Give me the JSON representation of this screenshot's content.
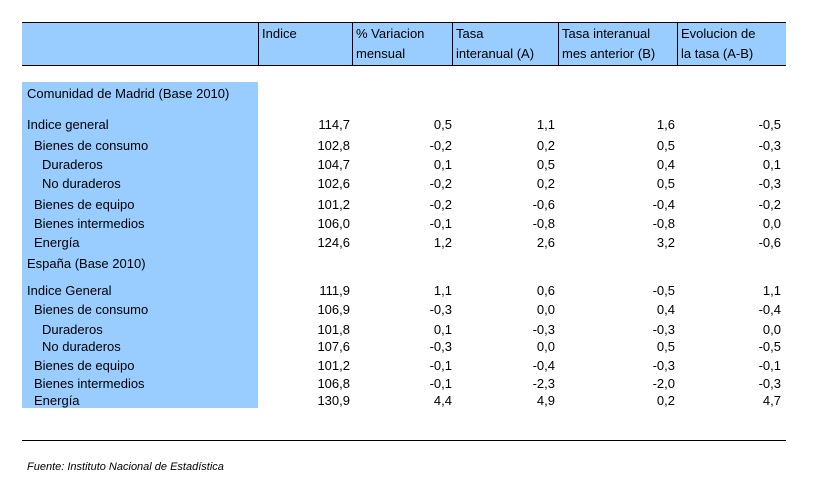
{
  "header": {
    "columns": [
      [
        "Indice",
        ""
      ],
      [
        "% Variacion",
        "mensual"
      ],
      [
        "Tasa",
        "interanual (A)"
      ],
      [
        "Tasa interanual",
        "mes anterior (B)"
      ],
      [
        "Evolucion de",
        "la tasa (A-B)"
      ]
    ]
  },
  "sections": [
    {
      "title": "Comunidad de Madrid (Base 2010)",
      "rows": [
        {
          "label": "Indice general",
          "indent": 0,
          "values": [
            "114,7",
            "0,5",
            "1,1",
            "1,6",
            "-0,5"
          ]
        },
        {
          "label": "Bienes de consumo",
          "indent": 1,
          "values": [
            "102,8",
            "-0,2",
            "0,2",
            "0,5",
            "-0,3"
          ]
        },
        {
          "label": "Duraderos",
          "indent": 2,
          "values": [
            "104,7",
            "0,1",
            "0,5",
            "0,4",
            "0,1"
          ]
        },
        {
          "label": "No duraderos",
          "indent": 2,
          "values": [
            "102,6",
            "-0,2",
            "0,2",
            "0,5",
            "-0,3"
          ]
        },
        {
          "label": "Bienes de equipo",
          "indent": 1,
          "values": [
            "101,2",
            "-0,2",
            "-0,6",
            "-0,4",
            "-0,2"
          ]
        },
        {
          "label": "Bienes intermedios",
          "indent": 1,
          "values": [
            "106,0",
            "-0,1",
            "-0,8",
            "-0,8",
            "0,0"
          ]
        },
        {
          "label": "Energía",
          "indent": 1,
          "values": [
            "124,6",
            "1,2",
            "2,6",
            "3,2",
            "-0,6"
          ]
        }
      ]
    },
    {
      "title": "España (Base 2010)",
      "rows": [
        {
          "label": "Indice General",
          "indent": 0,
          "values": [
            "111,9",
            "1,1",
            "0,6",
            "-0,5",
            "1,1"
          ]
        },
        {
          "label": "Bienes de consumo",
          "indent": 1,
          "values": [
            "106,9",
            "-0,3",
            "0,0",
            "0,4",
            "-0,4"
          ]
        },
        {
          "label": "Duraderos",
          "indent": 2,
          "values": [
            "101,8",
            "0,1",
            "-0,3",
            "-0,3",
            "0,0"
          ]
        },
        {
          "label": "No duraderos",
          "indent": 2,
          "values": [
            "107,6",
            "-0,3",
            "0,0",
            "0,5",
            "-0,5"
          ]
        },
        {
          "label": "Bienes de equipo",
          "indent": 1,
          "values": [
            "101,2",
            "-0,1",
            "-0,4",
            "-0,3",
            "-0,1"
          ]
        },
        {
          "label": "Bienes intermedios",
          "indent": 1,
          "values": [
            "106,8",
            "-0,1",
            "-2,3",
            "-2,0",
            "-0,3"
          ]
        },
        {
          "label": "Energía",
          "indent": 1,
          "values": [
            "130,9",
            "4,4",
            "4,9",
            "0,2",
            "4,7"
          ]
        }
      ]
    }
  ],
  "footnote": "Fuente: Instituto Nacional de Estadística",
  "colors": {
    "band": "#99ccff"
  }
}
